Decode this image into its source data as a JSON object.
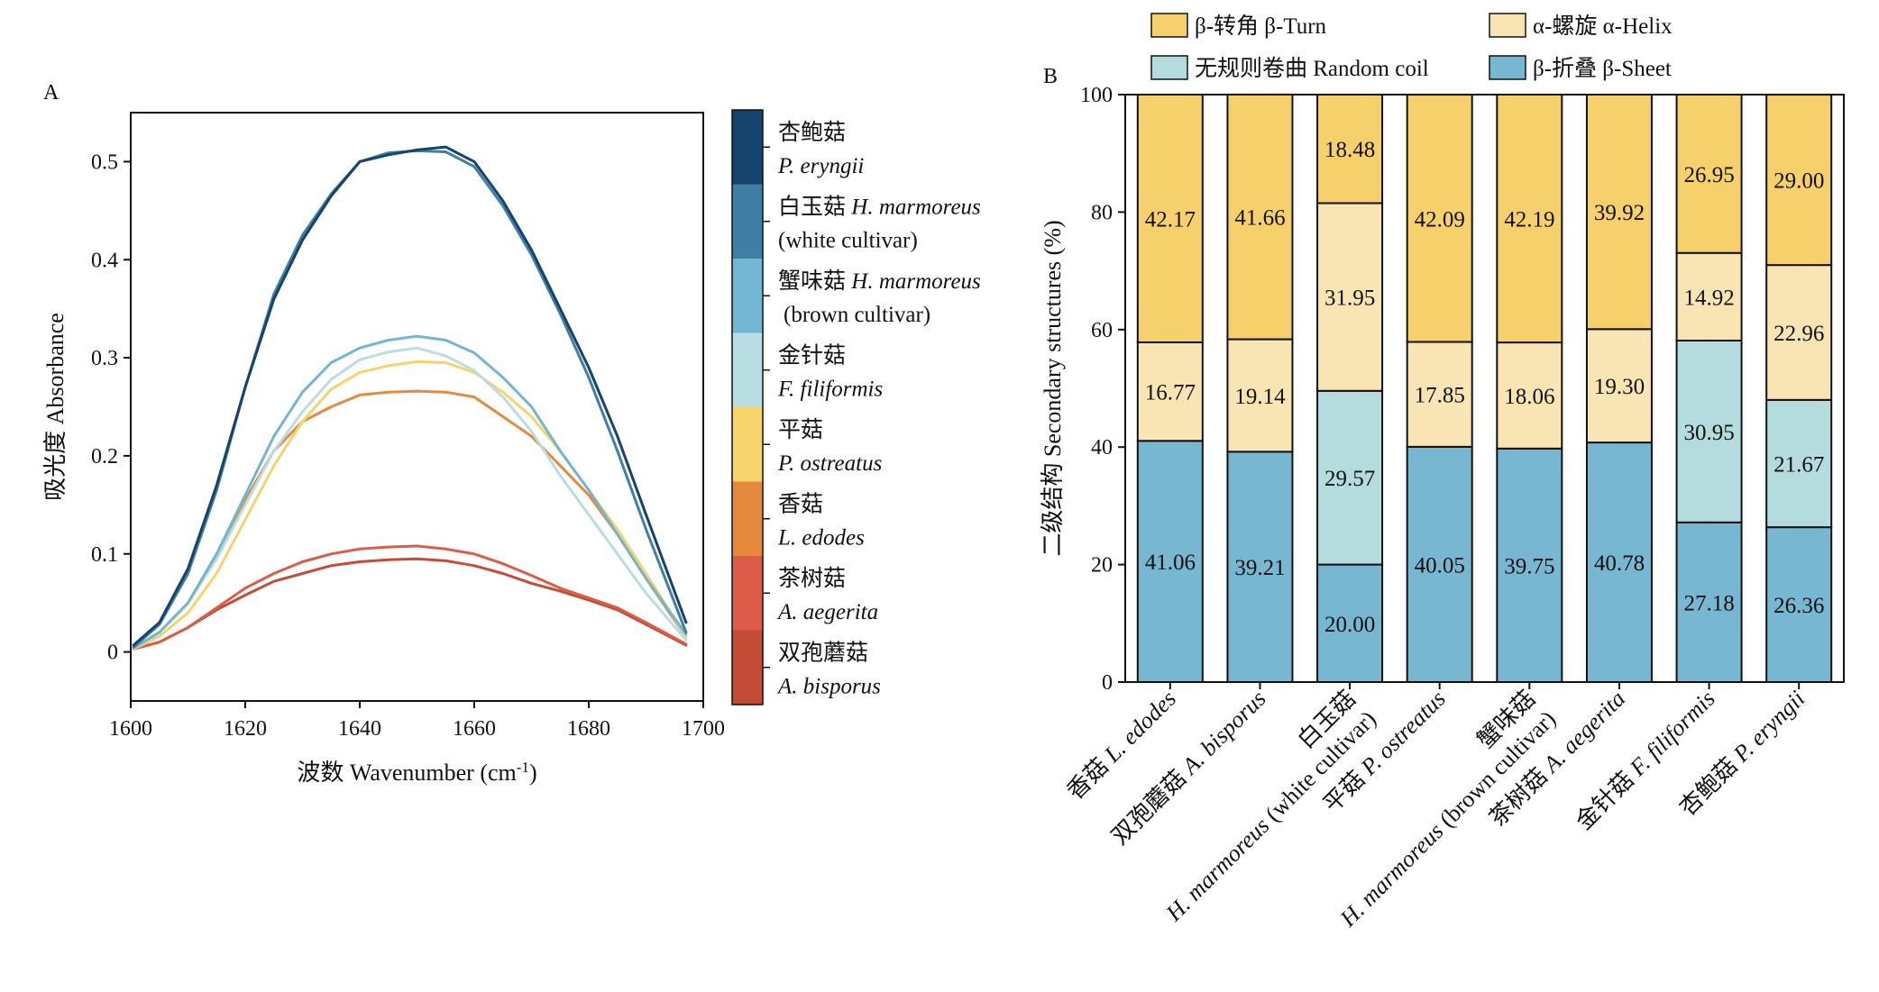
{
  "panel_a": {
    "label": "A",
    "chart_data": {
      "type": "line",
      "xlabel": "波数 Wavenumber (cm-1)",
      "xlabel_main": "波数 Wavenumber (cm",
      "xlabel_sup": "-1",
      "xlabel_close": ")",
      "ylabel": "吸光度 Absorbance",
      "xlim": [
        1600,
        1700
      ],
      "ylim": [
        -0.05,
        0.55
      ],
      "xticks": [
        1600,
        1620,
        1640,
        1660,
        1680,
        1700
      ],
      "xtick_labels": [
        "1600",
        "1620",
        "1640",
        "1660",
        "1680",
        "1700"
      ],
      "yticks": [
        0,
        0.1,
        0.2,
        0.3,
        0.4,
        0.5
      ],
      "ytick_labels": [
        "0",
        "0.1",
        "0.2",
        "0.3",
        "0.4",
        "0.5"
      ],
      "x": [
        1600.5,
        1605,
        1610,
        1615,
        1620,
        1625,
        1630,
        1635,
        1640,
        1645,
        1650,
        1655,
        1660,
        1665,
        1670,
        1675,
        1680,
        1685,
        1690,
        1697
      ],
      "series": [
        {
          "name": "杏鲍菇 P. eryngii",
          "color": "#16426e",
          "values": [
            0.007,
            0.03,
            0.085,
            0.17,
            0.27,
            0.36,
            0.42,
            0.465,
            0.5,
            0.507,
            0.512,
            0.515,
            0.5,
            0.46,
            0.41,
            0.35,
            0.29,
            0.22,
            0.14,
            0.03
          ]
        },
        {
          "name": "白玉菇 H. marmoreus (white cultivar)",
          "color": "#3f7fa6",
          "values": [
            0.005,
            0.028,
            0.08,
            0.165,
            0.27,
            0.365,
            0.425,
            0.467,
            0.5,
            0.509,
            0.511,
            0.51,
            0.495,
            0.455,
            0.405,
            0.345,
            0.28,
            0.205,
            0.125,
            0.02
          ]
        },
        {
          "name": "蟹味菇 H. marmoreus (brown cultivar)",
          "color": "#72b6d4",
          "values": [
            0.004,
            0.02,
            0.05,
            0.1,
            0.16,
            0.22,
            0.265,
            0.295,
            0.31,
            0.318,
            0.322,
            0.318,
            0.305,
            0.28,
            0.25,
            0.205,
            0.165,
            0.12,
            0.075,
            0.018
          ]
        },
        {
          "name": "金针菇 F. filiformis",
          "color": "#b8dde2",
          "values": [
            0.004,
            0.02,
            0.05,
            0.095,
            0.15,
            0.205,
            0.245,
            0.278,
            0.298,
            0.306,
            0.31,
            0.302,
            0.287,
            0.26,
            0.225,
            0.18,
            0.14,
            0.1,
            0.06,
            0.012
          ]
        },
        {
          "name": "平菇 P. ostreatus",
          "color": "#f7d36c",
          "values": [
            0.003,
            0.016,
            0.04,
            0.08,
            0.135,
            0.19,
            0.235,
            0.268,
            0.285,
            0.292,
            0.296,
            0.295,
            0.285,
            0.265,
            0.24,
            0.205,
            0.165,
            0.125,
            0.08,
            0.015
          ]
        },
        {
          "name": "香菇 L. edodes",
          "color": "#e58a3c",
          "values": [
            0.004,
            0.02,
            0.05,
            0.1,
            0.155,
            0.205,
            0.235,
            0.25,
            0.262,
            0.265,
            0.266,
            0.265,
            0.26,
            0.24,
            0.22,
            0.19,
            0.16,
            0.12,
            0.075,
            0.015
          ]
        },
        {
          "name": "茶树菇 A. aegerita",
          "color": "#dd5c49",
          "values": [
            0.003,
            0.01,
            0.025,
            0.045,
            0.065,
            0.08,
            0.092,
            0.1,
            0.105,
            0.107,
            0.108,
            0.105,
            0.1,
            0.09,
            0.078,
            0.065,
            0.055,
            0.045,
            0.03,
            0.008
          ]
        },
        {
          "name": "双孢蘑菇 A. bisporus",
          "color": "#c44b36",
          "values": [
            0.003,
            0.01,
            0.025,
            0.043,
            0.058,
            0.072,
            0.08,
            0.088,
            0.092,
            0.094,
            0.095,
            0.093,
            0.088,
            0.08,
            0.07,
            0.062,
            0.053,
            0.043,
            0.028,
            0.007
          ]
        }
      ],
      "legend": [
        {
          "color": "#16426e",
          "zh": "杏鲍菇",
          "sci": "P. eryngii",
          "extra": ""
        },
        {
          "color": "#3f7fa6",
          "zh": "白玉菇",
          "sci": "H. marmoreus",
          "extra": "(white cultivar)"
        },
        {
          "color": "#72b6d4",
          "zh": "蟹味菇",
          "sci": "H. marmoreus",
          "extra": "(brown cultivar)"
        },
        {
          "color": "#b8dde2",
          "zh": "金针菇",
          "sci": "F. filiformis",
          "extra": ""
        },
        {
          "color": "#f7d36c",
          "zh": "平菇",
          "sci": "P. ostreatus",
          "extra": ""
        },
        {
          "color": "#e58a3c",
          "zh": "香菇",
          "sci": "L. edodes",
          "extra": ""
        },
        {
          "color": "#dd5c49",
          "zh": "茶树菇",
          "sci": "A. aegerita",
          "extra": ""
        },
        {
          "color": "#c44b36",
          "zh": "双孢蘑菇",
          "sci": "A. bisporus",
          "extra": ""
        }
      ]
    }
  },
  "panel_b": {
    "label": "B",
    "chart_data": {
      "type": "bar",
      "stacked": true,
      "ylabel": "二级结构 Secondary structures (%)",
      "ylim": [
        0,
        100
      ],
      "yticks": [
        0,
        20,
        40,
        60,
        80,
        100
      ],
      "ytick_labels": [
        "0",
        "20",
        "40",
        "60",
        "80",
        "100"
      ],
      "categories": [
        {
          "line1": "香菇 L. edodes",
          "zh": "香菇",
          "sci": "L. edodes",
          "line2": "",
          "suffix": ""
        },
        {
          "line1": "双孢蘑菇 A. bisporus",
          "zh": "双孢蘑菇",
          "sci": "A. bisporus",
          "line2": "",
          "suffix": ""
        },
        {
          "line1": "白玉菇",
          "zh": "白玉菇",
          "sci": "",
          "line2": "H. marmoreus (white cultivar)",
          "sci2": "H. marmoreus",
          "suffix": " (white cultivar)"
        },
        {
          "line1": "平菇 P. ostreatus",
          "zh": "平菇",
          "sci": "P. ostreatus",
          "line2": "",
          "suffix": ""
        },
        {
          "line1": "蟹味菇",
          "zh": "蟹味菇",
          "sci": "",
          "line2": "H. marmoreus (brown cultivar)",
          "sci2": "H. marmoreus",
          "suffix": " (brown cultivar)"
        },
        {
          "line1": "茶树菇 A. aegerita",
          "zh": "茶树菇",
          "sci": "A. aegerita",
          "line2": "",
          "suffix": ""
        },
        {
          "line1": "金针菇 F. filiformis",
          "zh": "金针菇",
          "sci": "F. filiformis",
          "line2": "",
          "suffix": ""
        },
        {
          "line1": "杏鲍菇 P. eryngii",
          "zh": "杏鲍菇",
          "sci": "P. eryngii",
          "line2": "",
          "suffix": ""
        }
      ],
      "series": [
        {
          "name": "β-折叠 β-Sheet",
          "color": "#77b7d1",
          "values": [
            41.06,
            39.21,
            20.0,
            40.05,
            39.75,
            40.78,
            27.18,
            26.36
          ],
          "labels": [
            "41.06",
            "39.21",
            "20.00",
            "40.05",
            "39.75",
            "40.78",
            "27.18",
            "26.36"
          ]
        },
        {
          "name": "无规则卷曲 Random coil",
          "color": "#b4dcdf",
          "values": [
            0,
            0,
            29.57,
            0,
            0,
            0,
            30.95,
            21.67
          ],
          "labels": [
            "",
            "",
            "29.57",
            "",
            "",
            "",
            "30.95",
            "21.67"
          ]
        },
        {
          "name": "α-螺旋 α-Helix",
          "color": "#f9e5b4",
          "values": [
            16.77,
            19.14,
            31.95,
            17.85,
            18.06,
            19.3,
            14.92,
            22.96
          ],
          "labels": [
            "16.77",
            "19.14",
            "31.95",
            "17.85",
            "18.06",
            "19.30",
            "14.92",
            "22.96"
          ]
        },
        {
          "name": "β-转角 β-Turn",
          "color": "#f6d06b",
          "values": [
            42.17,
            41.66,
            18.48,
            42.09,
            42.19,
            39.92,
            26.95,
            29.0
          ],
          "labels": [
            "42.17",
            "41.66",
            "18.48",
            "42.09",
            "42.19",
            "39.92",
            "26.95",
            "29.00"
          ]
        }
      ],
      "legend": [
        {
          "color": "#f6d06b",
          "text": "β-转角 β-Turn"
        },
        {
          "color": "#f9e5b4",
          "text": "α-螺旋 α-Helix"
        },
        {
          "color": "#b4dcdf",
          "text": "无规则卷曲 Random coil"
        },
        {
          "color": "#77b7d1",
          "text": "β-折叠 β-Sheet"
        }
      ]
    }
  }
}
